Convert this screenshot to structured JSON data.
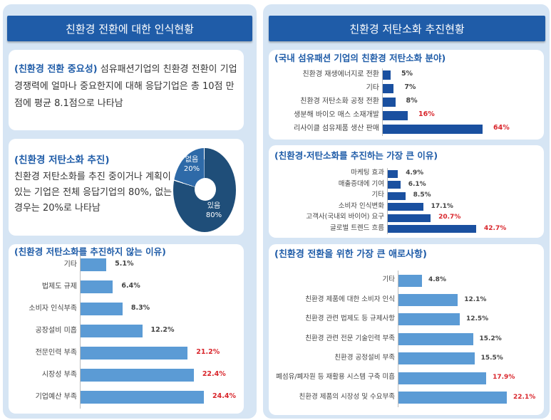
{
  "left": {
    "header": "친환경 전환에 대한 인식현황",
    "importance": {
      "title": "(친환경 전환 중요성)",
      "text": "섬유패션기업의 친환경 전환이 기업경쟁력에 얼마나 중요한지에 대해 응답기업은 총 10점 만점에 평균 8.1점으로 나타남"
    },
    "lowcarbon": {
      "title": "(친환경 저탄소화 추진)",
      "text": "친환경 저탄소화를 추진 중이거나 계획이 있는 기업은 전체 응답기업의 80%, 없는 경우는 20%로 나타남",
      "donut": [
        {
          "label": "있음",
          "value": "80%",
          "pct": 80,
          "color": "#1f4e79"
        },
        {
          "label": "없음",
          "value": "20%",
          "pct": 20,
          "color": "#2e6aa8"
        }
      ]
    },
    "not_reasons": {
      "title": "(친환경 저탄소화를 추진하지 않는 이유)",
      "color": "#5b9bd5",
      "items": [
        {
          "label": "기타",
          "value": 5.1,
          "text": "5.1%",
          "highlight": false
        },
        {
          "label": "법제도 규제",
          "value": 6.4,
          "text": "6.4%",
          "highlight": false
        },
        {
          "label": "소비자 인식부족",
          "value": 8.3,
          "text": "8.3%",
          "highlight": false
        },
        {
          "label": "공장설비 미흡",
          "value": 12.2,
          "text": "12.2%",
          "highlight": false
        },
        {
          "label": "전문인력 부족",
          "value": 21.2,
          "text": "21.2%",
          "highlight": true
        },
        {
          "label": "시장성 부족",
          "value": 22.4,
          "text": "22.4%",
          "highlight": true
        },
        {
          "label": "기업예산 부족",
          "value": 24.4,
          "text": "24.4%",
          "highlight": true
        }
      ]
    }
  },
  "right": {
    "header": "친환경 저탄소화 추진현황",
    "fields": {
      "title": "(국내 섬유패션 기업의 친환경 저탄소화 분야)",
      "color": "#1a50a0",
      "items": [
        {
          "label": "친환경 재생에너지로 전환",
          "value": 5,
          "text": "5%",
          "highlight": false
        },
        {
          "label": "기타",
          "value": 7,
          "text": "7%",
          "highlight": false
        },
        {
          "label": "친환경 저탄소화 공정 전환",
          "value": 8,
          "text": "8%",
          "highlight": false
        },
        {
          "label": "생분해 바이오 매스 소재개발",
          "value": 16,
          "text": "16%",
          "highlight": true
        },
        {
          "label": "리사이클 섬유제품 생산 판매",
          "value": 64,
          "text": "64%",
          "highlight": true
        }
      ]
    },
    "reasons": {
      "title": "(친환경·저탄소화를 추진하는 가장 큰 이유)",
      "color": "#1a50a0",
      "items": [
        {
          "label": "마케팅 효과",
          "value": 4.9,
          "text": "4.9%",
          "highlight": false
        },
        {
          "label": "매출증대에 기여",
          "value": 6.1,
          "text": "6.1%",
          "highlight": false
        },
        {
          "label": "기타",
          "value": 8.5,
          "text": "8.5%",
          "highlight": false
        },
        {
          "label": "소비자 인식변화",
          "value": 17.1,
          "text": "17.1%",
          "highlight": false
        },
        {
          "label": "고객사(국내외 바이어) 요구",
          "value": 20.7,
          "text": "20.7%",
          "highlight": true
        },
        {
          "label": "글로벌 트렌드 흐름",
          "value": 42.7,
          "text": "42.7%",
          "highlight": true
        }
      ]
    },
    "difficulties": {
      "title": "(친환경 전환을 위한 가장 큰 애로사항)",
      "color": "#5b9bd5",
      "items": [
        {
          "label": "기타",
          "value": 4.8,
          "text": "4.8%",
          "highlight": false
        },
        {
          "label": "친환경 제품에 대한 소비자 인식",
          "value": 12.1,
          "text": "12.1%",
          "highlight": false
        },
        {
          "label": "친환경 관련 법제도 등 규제사항",
          "value": 12.5,
          "text": "12.5%",
          "highlight": false
        },
        {
          "label": "친환경 관련 전문 기술인력 부족",
          "value": 15.2,
          "text": "15.2%",
          "highlight": false
        },
        {
          "label": "친환경 공정설비 부족",
          "value": 15.5,
          "text": "15.5%",
          "highlight": false
        },
        {
          "label": "폐섬유/폐자원 등 재활용 시스템 구축 미흡",
          "value": 17.9,
          "text": "17.9%",
          "highlight": true
        },
        {
          "label": "친환경 제품의 시장성 및 수요부족",
          "value": 22.1,
          "text": "22.1%",
          "highlight": true
        }
      ]
    }
  }
}
